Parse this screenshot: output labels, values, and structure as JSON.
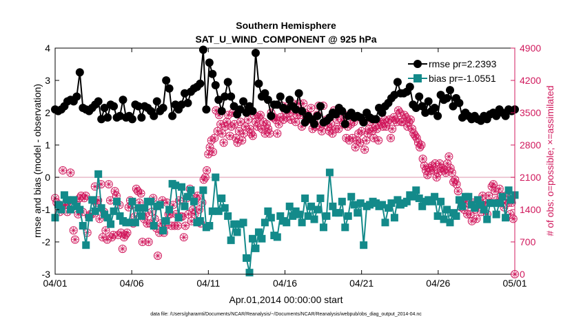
{
  "chart_data": {
    "type": "line",
    "title": "Southern Hemisphere",
    "subtitle": "SAT_U_WIND_COMPONENT @ 925 hPa",
    "xlabel": "Apr.01,2014 00:00:00 start",
    "ylabel_left": "rmse and bias (model - observation)",
    "ylabel_right": "# of obs: o=possible; ×=assimilated",
    "footnote": "data file: /Users/gharamti/Documents/NCAR/Reanalysis/~/Documents/NCAR/Reanalysis/webpub/obs_diag_output_2014-04.nc",
    "x_ticks": [
      "04/01",
      "04/06",
      "04/11",
      "04/16",
      "04/21",
      "04/26",
      "05/01"
    ],
    "y_left_ticks": [
      "-3",
      "-2",
      "-1",
      "0",
      "1",
      "2",
      "3",
      "4"
    ],
    "y_right_ticks": [
      "0",
      "700",
      "1400",
      "2100",
      "2800",
      "3500",
      "4200",
      "4900"
    ],
    "ylim_left": [
      -3,
      4
    ],
    "ylim_right": [
      0,
      4900
    ],
    "xlim_days": [
      0,
      30
    ],
    "colors": {
      "rmse": "#000000",
      "bias": "#138a8a",
      "obs": "#d0185c",
      "zero_line": "#e8b8c8",
      "right_axis": "#d0185c"
    },
    "series": [
      {
        "name": "rmse pr=2.2393",
        "marker": "circle",
        "values": [
          2.1,
          2.05,
          2.1,
          2.2,
          2.35,
          2.4,
          2.35,
          2.5,
          3.25,
          2.15,
          2.1,
          2.05,
          2.15,
          2.25,
          2.35,
          1.8,
          2.15,
          1.85,
          2.25,
          2.2,
          1.85,
          1.9,
          2.4,
          1.85,
          1.9,
          1.8,
          2.25,
          2.2,
          1.85,
          2.2,
          2.15,
          2.05,
          1.9,
          2.35,
          2.05,
          2.15,
          3.0,
          2.75,
          1.9,
          2.25,
          2.1,
          2.25,
          2.6,
          2.3,
          2.65,
          2.75,
          2.8,
          2.9,
          3.95,
          2.1,
          3.55,
          3.2,
          2.85,
          2.4,
          2.05,
          2.5,
          2.95,
          2.5,
          2.2,
          1.95,
          2.1,
          2.35,
          2.0,
          2.2,
          2.05,
          3.85,
          2.9,
          2.5,
          2.6,
          2.4,
          1.9,
          2.25,
          2.25,
          2.5,
          2.15,
          2.1,
          2.4,
          2.2,
          2.1,
          2.6,
          2.05,
          1.7,
          1.9,
          1.8,
          1.65,
          1.9,
          2.2,
          1.7,
          1.75,
          1.85,
          2.0,
          1.95,
          2.15,
          2.05,
          1.65,
          1.9,
          2.0,
          1.85,
          1.9,
          1.85,
          1.7,
          2.0,
          1.85,
          1.8,
          1.8,
          2.15,
          2.0,
          2.2,
          2.3,
          2.45,
          2.55,
          2.95,
          2.6,
          2.6,
          2.65,
          2.8,
          2.25,
          2.15,
          2.5,
          2.2,
          2.0,
          2.35,
          2.05,
          2.15,
          1.9,
          2.55,
          2.4,
          2.45,
          2.7,
          2.2,
          2.45,
          2.3,
          1.85,
          2.0,
          1.9,
          1.8,
          1.9,
          1.8,
          1.75,
          1.9,
          1.8,
          1.95,
          2.0,
          1.9,
          2.1,
          2.0,
          1.9,
          2.1,
          2.05,
          2.1
        ]
      },
      {
        "name": "bias pr=-1.0551",
        "marker": "square",
        "values": [
          -1.25,
          -0.85,
          -1.0,
          -0.55,
          -0.7,
          -1.0,
          -0.7,
          -0.9,
          -1.0,
          -1.5,
          -2.1,
          -1.25,
          -0.7,
          -1.05,
          0.1,
          -0.95,
          -1.15,
          -1.25,
          -1.45,
          -1.05,
          -0.75,
          -1.2,
          -1.35,
          -1.4,
          -1.4,
          -0.75,
          -1.4,
          -0.95,
          -1.2,
          -0.95,
          -0.75,
          -0.75,
          -1.5,
          -0.9,
          -0.85,
          -1.65,
          -1.35,
          -1.0,
          -0.2,
          -0.25,
          -1.25,
          -0.3,
          -0.9,
          -0.6,
          -0.4,
          -0.75,
          -1.4,
          -1.35,
          -0.4,
          -1.55,
          -1.5,
          -1.05,
          0.0,
          -1.05,
          -0.65,
          -0.95,
          -1.2,
          -1.95,
          -1.45,
          -1.7,
          -1.45,
          -1.4,
          -2.5,
          -2.95,
          -1.9,
          -2.2,
          -1.7,
          -1.9,
          -1.4,
          -1.05,
          -1.25,
          -1.8,
          -1.85,
          -1.2,
          -1.35,
          -1.4,
          -0.9,
          -1.2,
          -1.05,
          -1.15,
          -1.4,
          -0.65,
          -1.2,
          -0.9,
          -1.3,
          -1.0,
          -0.65,
          -1.55,
          -1.2,
          0.15,
          -0.9,
          -1.1,
          -1.1,
          -0.75,
          -1.55,
          -1.2,
          -0.6,
          -0.85,
          -1.1,
          -0.8,
          -2.1,
          -0.9,
          -0.85,
          -0.75,
          -0.8,
          -0.9,
          -0.85,
          -1.4,
          -0.95,
          -0.8,
          -1.25,
          -0.7,
          -0.85,
          -0.8,
          -0.75,
          -0.55,
          -0.6,
          -0.4,
          -0.65,
          -0.9,
          -0.75,
          -0.7,
          -0.75,
          -0.6,
          -1.2,
          -0.75,
          -1.3,
          -1.0,
          -1.4,
          -1.1,
          -1.2,
          -0.7,
          -0.9,
          -0.6,
          -0.6,
          -0.85,
          -0.95,
          -0.7,
          -0.85,
          -1.0,
          -1.3,
          -0.8,
          -0.8,
          -1.15,
          -0.8,
          -0.6,
          -1.25,
          -0.4,
          -0.7,
          -0.55
        ]
      }
    ],
    "obs_possible": [
      1650,
      1550,
      1500,
      1350,
      1450,
      2250,
      1500,
      1500,
      1350,
      1550,
      2200,
      1450,
      950,
      750,
      1550,
      1300,
      1650,
      1700,
      1350,
      1650,
      1700,
      900,
      1250,
      1300,
      1300,
      1600,
      1900,
      1550,
      1600,
      1200,
      1950,
      800,
      1350,
      950,
      750,
      1950,
      1600,
      800,
      850,
      1800,
      1700,
      850,
      1500,
      900,
      550,
      800,
      850,
      900,
      1450,
      1600,
      1500,
      1100,
      1250,
      1850,
      1800,
      1550,
      1750,
      700,
      1200,
      1300,
      1100,
      700,
      1100,
      1350,
      1650,
      1200,
      1000,
      400,
      900,
      1100,
      1600,
      900,
      1050,
      1550,
      1300,
      1300,
      1050,
      1500,
      1050,
      1300,
      1050,
      1600,
      1250,
      1250,
      800,
      1050,
      1650,
      1300,
      1850,
      1150,
      1400,
      1300,
      1650,
      1700,
      1400,
      1100,
      1550,
      2050,
      2100,
      2250,
      2600,
      2750,
      2900,
      2650,
      2950,
      3550,
      3100,
      3450,
      3250,
      3050,
      2850,
      3200,
      3300,
      3450,
      3000,
      3200,
      3500,
      3250,
      2950,
      2850,
      3100,
      3300,
      2900,
      3050,
      3200,
      3500,
      3350,
      3150,
      3050,
      3000,
      3450,
      3300,
      3200,
      3400,
      3450,
      3150,
      3300,
      3050,
      3250,
      3150,
      3050,
      3500,
      3400,
      3400,
      3350,
      3050,
      3250,
      3400,
      3650,
      3350,
      3550,
      3400,
      3650,
      3500,
      3350,
      3700,
      3550,
      3300,
      3450,
      3700,
      3450,
      3200,
      3700,
      3500,
      3350,
      3450,
      3350,
      3600,
      3150,
      3300,
      3200,
      3450,
      3650,
      3200,
      3100,
      3650,
      3300,
      3350,
      3200,
      3100,
      3250,
      3050,
      3550,
      3150,
      3350,
      3150,
      3550,
      3350,
      3250,
      3450,
      2950,
      3200,
      2900,
      3250,
      2950,
      3300,
      2750,
      2900,
      3050,
      2850,
      3100,
      3300,
      2700,
      2900,
      3050,
      3150,
      3300,
      3100,
      2950,
      3200,
      3150,
      2900,
      3300,
      3250,
      3200,
      3350,
      3200,
      3300,
      3350,
      2950,
      3150,
      3400,
      3350,
      3300,
      3550,
      3500,
      3300,
      3300,
      3450,
      3400,
      3200,
      3300,
      3350,
      3150,
      3050,
      3000,
      2950,
      2850,
      2750,
      2800,
      2500,
      2350,
      2250,
      2150,
      2300,
      2250,
      2350,
      2250,
      2400,
      2100,
      2200,
      2400,
      2300,
      2300,
      2250,
      2200,
      2400,
      2550,
      2300,
      2200,
      2000,
      2050,
      1950,
      1800,
      1600,
      1450,
      1600,
      1400,
      1550,
      1300,
      1550,
      1300,
      1150,
      1550,
      1400,
      1200,
      1500,
      1600,
      1350,
      1700,
      1500,
      1550,
      1300,
      1700,
      1550,
      1900,
      1950,
      1800,
      1600,
      1550,
      1850,
      1700,
      1600,
      1450,
      1700,
      1600,
      1550,
      1300,
      1550,
      1200,
      0
    ]
  }
}
